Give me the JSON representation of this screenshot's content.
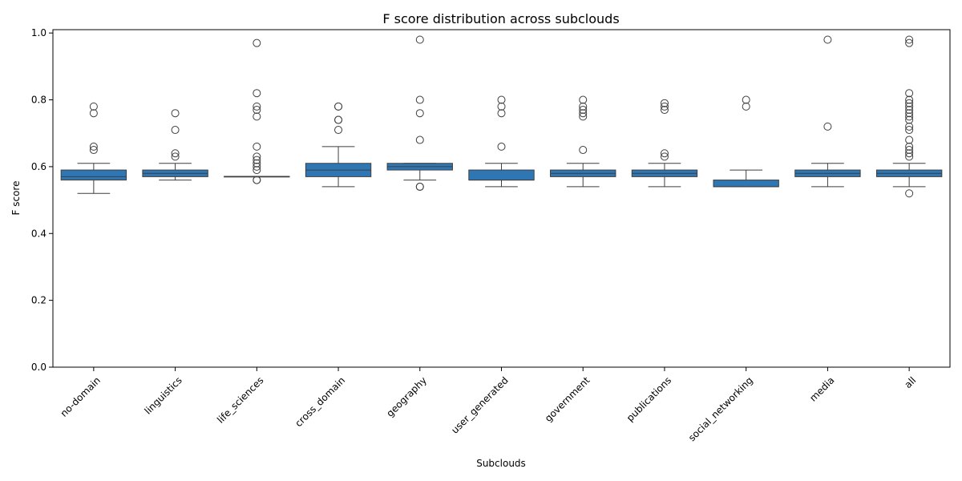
{
  "chart_data": {
    "type": "box",
    "title": "F score distribution across subclouds",
    "xlabel": "Subclouds",
    "ylabel": "F score",
    "ylim": [
      0.0,
      1.01
    ],
    "yticks": [
      "0.0",
      "0.2",
      "0.4",
      "0.6",
      "0.8",
      "1.0"
    ],
    "grid": false,
    "box_color": "#2f77b4",
    "categories": [
      "no-domain",
      "linguistics",
      "life_sciences",
      "cross_domain",
      "geography",
      "user_generated",
      "government",
      "publications",
      "social_networking",
      "media",
      "all"
    ],
    "boxes": [
      {
        "category": "no-domain",
        "whisker_low": 0.52,
        "q1": 0.56,
        "median": 0.57,
        "q3": 0.59,
        "whisker_high": 0.61,
        "outliers": [
          0.78,
          0.76,
          0.66,
          0.65
        ]
      },
      {
        "category": "linguistics",
        "whisker_low": 0.56,
        "q1": 0.57,
        "median": 0.58,
        "q3": 0.59,
        "whisker_high": 0.61,
        "outliers": [
          0.76,
          0.71,
          0.64,
          0.63
        ]
      },
      {
        "category": "life_sciences",
        "whisker_low": 0.57,
        "q1": 0.57,
        "median": 0.57,
        "q3": 0.571,
        "whisker_high": 0.571,
        "outliers": [
          0.97,
          0.82,
          0.78,
          0.77,
          0.75,
          0.66,
          0.63,
          0.62,
          0.61,
          0.6,
          0.59,
          0.56,
          0.56
        ]
      },
      {
        "category": "cross_domain",
        "whisker_low": 0.54,
        "q1": 0.57,
        "median": 0.59,
        "q3": 0.61,
        "whisker_high": 0.66,
        "outliers": [
          0.78,
          0.78,
          0.74,
          0.74,
          0.71
        ]
      },
      {
        "category": "geography",
        "whisker_low": 0.56,
        "q1": 0.59,
        "median": 0.6,
        "q3": 0.61,
        "whisker_high": 0.61,
        "outliers": [
          0.98,
          0.8,
          0.76,
          0.68,
          0.54,
          0.54
        ]
      },
      {
        "category": "user_generated",
        "whisker_low": 0.54,
        "q1": 0.56,
        "median": 0.56,
        "q3": 0.59,
        "whisker_high": 0.61,
        "outliers": [
          0.8,
          0.78,
          0.76,
          0.66
        ]
      },
      {
        "category": "government",
        "whisker_low": 0.54,
        "q1": 0.57,
        "median": 0.58,
        "q3": 0.59,
        "whisker_high": 0.61,
        "outliers": [
          0.8,
          0.78,
          0.77,
          0.76,
          0.75,
          0.65
        ]
      },
      {
        "category": "publications",
        "whisker_low": 0.54,
        "q1": 0.57,
        "median": 0.58,
        "q3": 0.59,
        "whisker_high": 0.61,
        "outliers": [
          0.79,
          0.78,
          0.77,
          0.64,
          0.63
        ]
      },
      {
        "category": "social_networking",
        "whisker_low": 0.54,
        "q1": 0.54,
        "median": 0.54,
        "q3": 0.56,
        "whisker_high": 0.59,
        "outliers": [
          0.8,
          0.78
        ]
      },
      {
        "category": "media",
        "whisker_low": 0.54,
        "q1": 0.57,
        "median": 0.58,
        "q3": 0.59,
        "whisker_high": 0.61,
        "outliers": [
          0.98,
          0.72
        ]
      },
      {
        "category": "all",
        "whisker_low": 0.54,
        "q1": 0.57,
        "median": 0.58,
        "q3": 0.59,
        "whisker_high": 0.61,
        "outliers": [
          0.98,
          0.97,
          0.82,
          0.8,
          0.79,
          0.78,
          0.77,
          0.76,
          0.75,
          0.74,
          0.72,
          0.71,
          0.68,
          0.66,
          0.65,
          0.64,
          0.63,
          0.52
        ]
      }
    ]
  }
}
